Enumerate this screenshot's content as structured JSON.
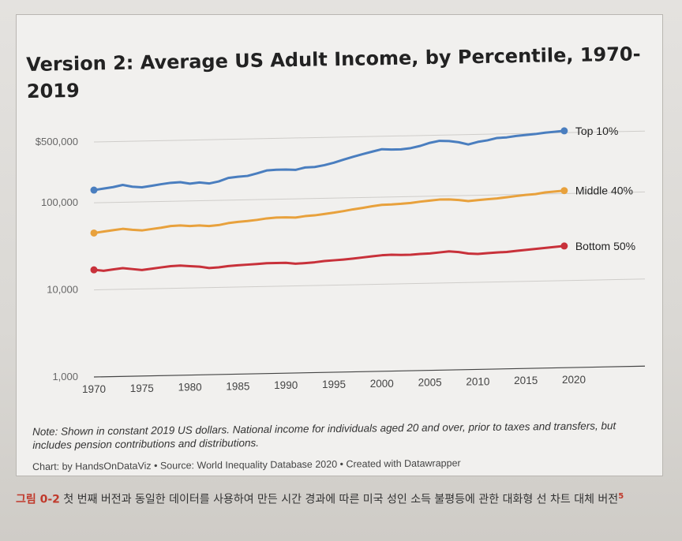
{
  "chart_data": {
    "type": "line",
    "title": "Version 2: Average US Adult Income, by Percentile, 1970-2019",
    "title_line1": "Version 2: Average US Adult Income, by Percentile, 1970-",
    "title_line2": "2019",
    "xlabel": "",
    "ylabel": "",
    "y_scale": "log",
    "ylim": [
      1000,
      500000
    ],
    "y_ticks": [
      {
        "value": 500000,
        "label": "$500,000"
      },
      {
        "value": 100000,
        "label": "100,000"
      },
      {
        "value": 10000,
        "label": "10,000"
      },
      {
        "value": 1000,
        "label": "1,000"
      }
    ],
    "x_ticks": [
      "1970",
      "1975",
      "1980",
      "1985",
      "1990",
      "1995",
      "2000",
      "2005",
      "2010",
      "2015",
      "2020"
    ],
    "xlim": [
      1970,
      2020
    ],
    "x": [
      1970,
      1971,
      1972,
      1973,
      1974,
      1975,
      1976,
      1977,
      1978,
      1979,
      1980,
      1981,
      1982,
      1983,
      1984,
      1985,
      1986,
      1987,
      1988,
      1989,
      1990,
      1991,
      1992,
      1993,
      1994,
      1995,
      1996,
      1997,
      1998,
      1999,
      2000,
      2001,
      2002,
      2003,
      2004,
      2005,
      2006,
      2007,
      2008,
      2009,
      2010,
      2011,
      2012,
      2013,
      2014,
      2015,
      2016,
      2017,
      2018,
      2019
    ],
    "series": [
      {
        "name": "Top 10%",
        "color": "#4a7ebf",
        "values": [
          140000,
          145000,
          150000,
          158000,
          150000,
          147000,
          152000,
          158000,
          163000,
          165000,
          158000,
          162000,
          157000,
          165000,
          180000,
          185000,
          188000,
          200000,
          215000,
          218000,
          218000,
          215000,
          228000,
          230000,
          240000,
          255000,
          275000,
          295000,
          315000,
          335000,
          355000,
          350000,
          350000,
          360000,
          380000,
          410000,
          430000,
          425000,
          410000,
          385000,
          410000,
          425000,
          450000,
          455000,
          470000,
          480000,
          490000,
          505000,
          515000,
          525000
        ]
      },
      {
        "name": "Middle 40%",
        "color": "#e8a13c",
        "values": [
          45000,
          46500,
          48000,
          49500,
          48000,
          47000,
          48500,
          50000,
          52000,
          52500,
          51500,
          52000,
          51000,
          52000,
          54500,
          56000,
          57000,
          58500,
          60500,
          61500,
          61500,
          61000,
          63000,
          64000,
          66000,
          68000,
          70500,
          73500,
          76000,
          79000,
          81500,
          82000,
          83000,
          84500,
          87000,
          89000,
          91000,
          91000,
          89000,
          86000,
          88000,
          89500,
          91000,
          93500,
          96000,
          98500,
          100000,
          104000,
          106000,
          108000
        ]
      },
      {
        "name": "Bottom 50%",
        "color": "#c8313a",
        "values": [
          17000,
          16500,
          17000,
          17500,
          17000,
          16500,
          17000,
          17500,
          18000,
          18200,
          17800,
          17500,
          16800,
          17000,
          17500,
          17800,
          18000,
          18200,
          18500,
          18500,
          18500,
          18000,
          18200,
          18500,
          19000,
          19300,
          19600,
          20000,
          20500,
          21000,
          21500,
          21700,
          21500,
          21500,
          21800,
          22000,
          22500,
          23000,
          22500,
          21500,
          21200,
          21500,
          21800,
          22000,
          22500,
          23000,
          23500,
          24000,
          24500,
          25000
        ]
      }
    ]
  },
  "note": "Note: Shown in constant 2019 US dollars. National income for individuals aged 20 and over, prior to taxes and transfers, but includes pension contributions and distributions.",
  "credit": "Chart: by HandsOnDataViz • Source: World Inequality Database 2020 • Created with Datawrapper",
  "caption": {
    "label": "그림 0-2",
    "text": " 첫 번째 버전과 동일한 데이터를 사용하여 만든 시간 경과에 따른 미국 성인 소득 불평등에 관한 대화형 선 차트 대체 버전",
    "footnote": "5"
  }
}
